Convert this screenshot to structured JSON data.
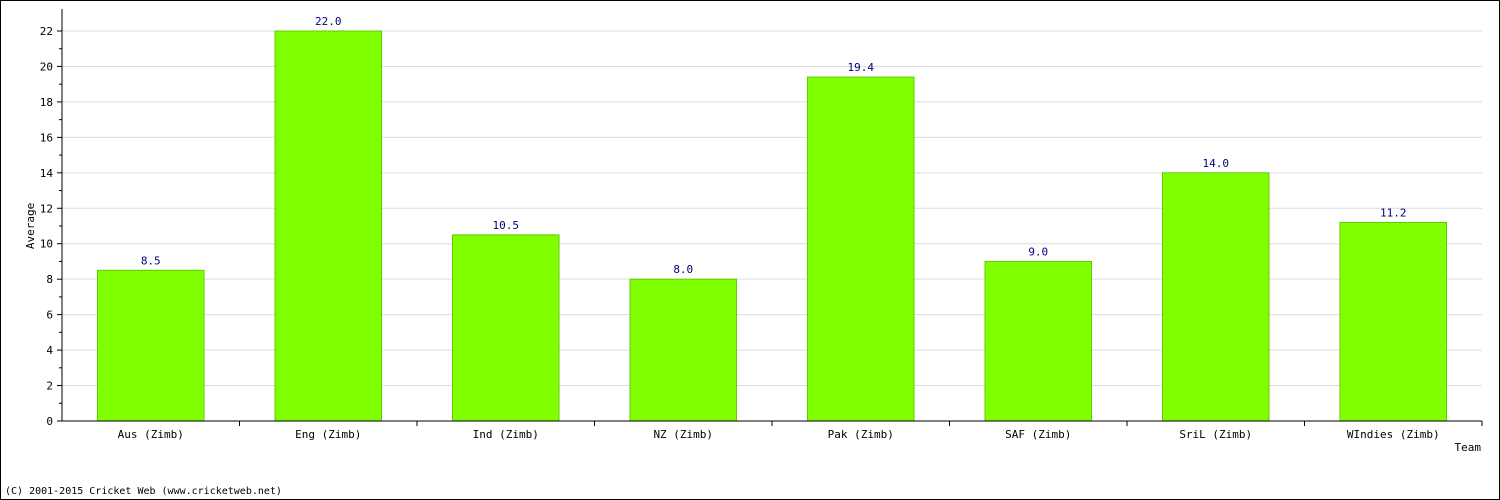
{
  "footer": {
    "copyright": "(C) 2001-2015 Cricket Web (www.cricketweb.net)"
  },
  "chart_data": {
    "type": "bar",
    "title": "",
    "xlabel": "Team",
    "ylabel": "Average",
    "ylim": [
      0,
      22
    ],
    "yticks": [
      0,
      2,
      4,
      6,
      8,
      10,
      12,
      14,
      16,
      18,
      20,
      22
    ],
    "grid": true,
    "categories": [
      "Aus (Zimb)",
      "Eng (Zimb)",
      "Ind (Zimb)",
      "NZ (Zimb)",
      "Pak (Zimb)",
      "SAF (Zimb)",
      "SriL (Zimb)",
      "WIndies (Zimb)"
    ],
    "values": [
      8.5,
      22.0,
      10.5,
      8.0,
      19.4,
      9.0,
      14.0,
      11.2
    ],
    "value_labels": [
      "8.5",
      "22.0",
      "10.5",
      "8.0",
      "19.4",
      "9.0",
      "14.0",
      "11.2"
    ],
    "colors": {
      "bar": "#80ff00",
      "bar_edge": "#5fcc00",
      "value_label": "#000080",
      "grid": "#dcdcdc",
      "axis": "#000000"
    }
  }
}
